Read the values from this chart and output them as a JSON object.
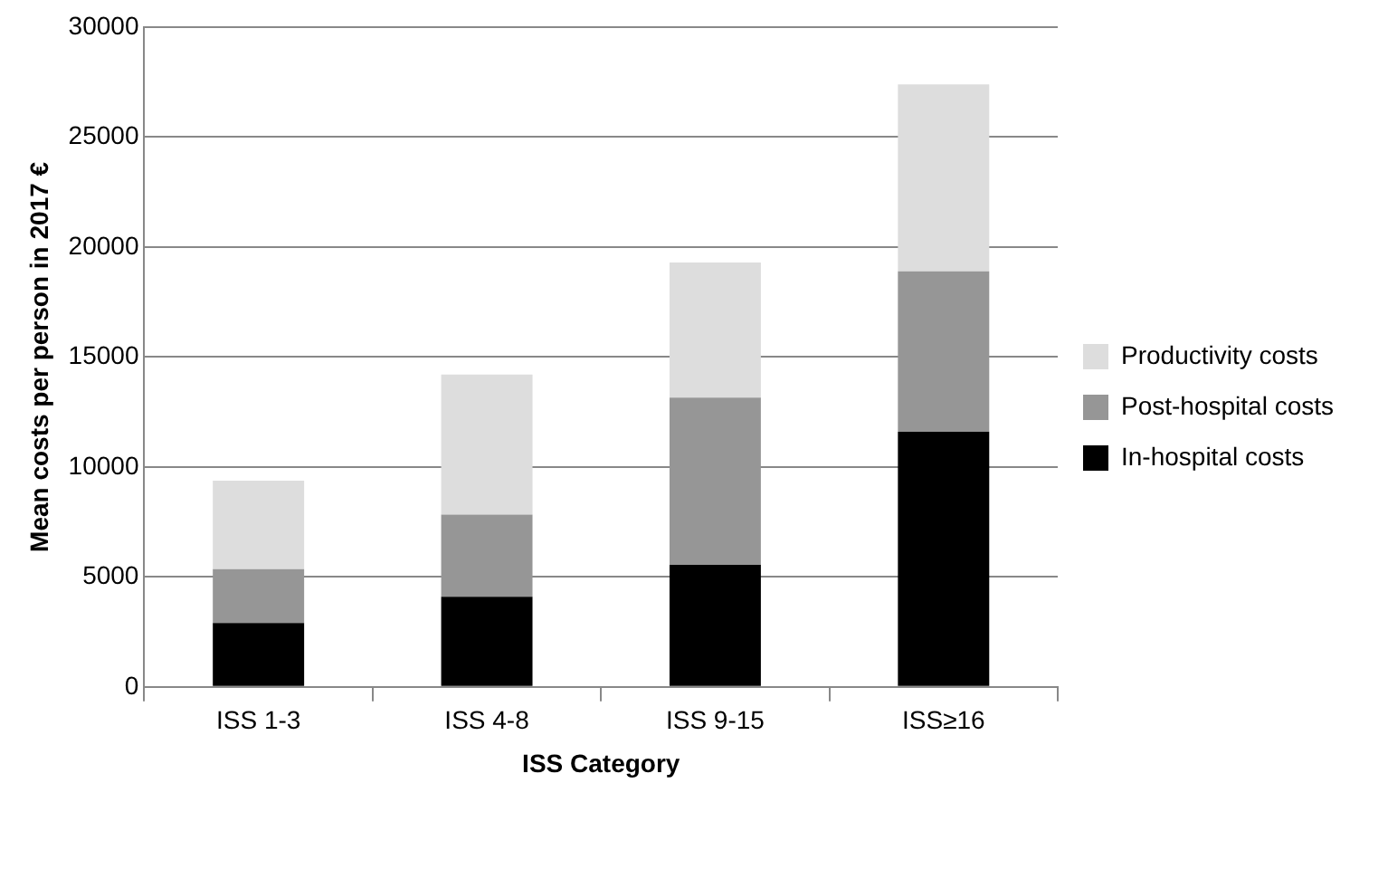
{
  "chart_data": {
    "type": "bar",
    "stacked": true,
    "xlabel": "ISS Category",
    "ylabel": "Mean costs per person in 2017 €",
    "categories": [
      "ISS 1-3",
      "ISS 4-8",
      "ISS 9-15",
      "ISS≥16"
    ],
    "series": [
      {
        "name": "In-hospital costs",
        "color": "#000000",
        "values": [
          2900,
          4100,
          5550,
          11600
        ]
      },
      {
        "name": "Post-hospital costs",
        "color": "#969696",
        "values": [
          2450,
          3730,
          7600,
          7300
        ]
      },
      {
        "name": "Productivity costs",
        "color": "#dddddd",
        "values": [
          4030,
          6370,
          6150,
          8500
        ]
      }
    ],
    "ylim": [
      0,
      30000
    ],
    "yticks": [
      0,
      5000,
      10000,
      15000,
      20000,
      25000,
      30000
    ],
    "grid": "y",
    "legend": "right"
  }
}
